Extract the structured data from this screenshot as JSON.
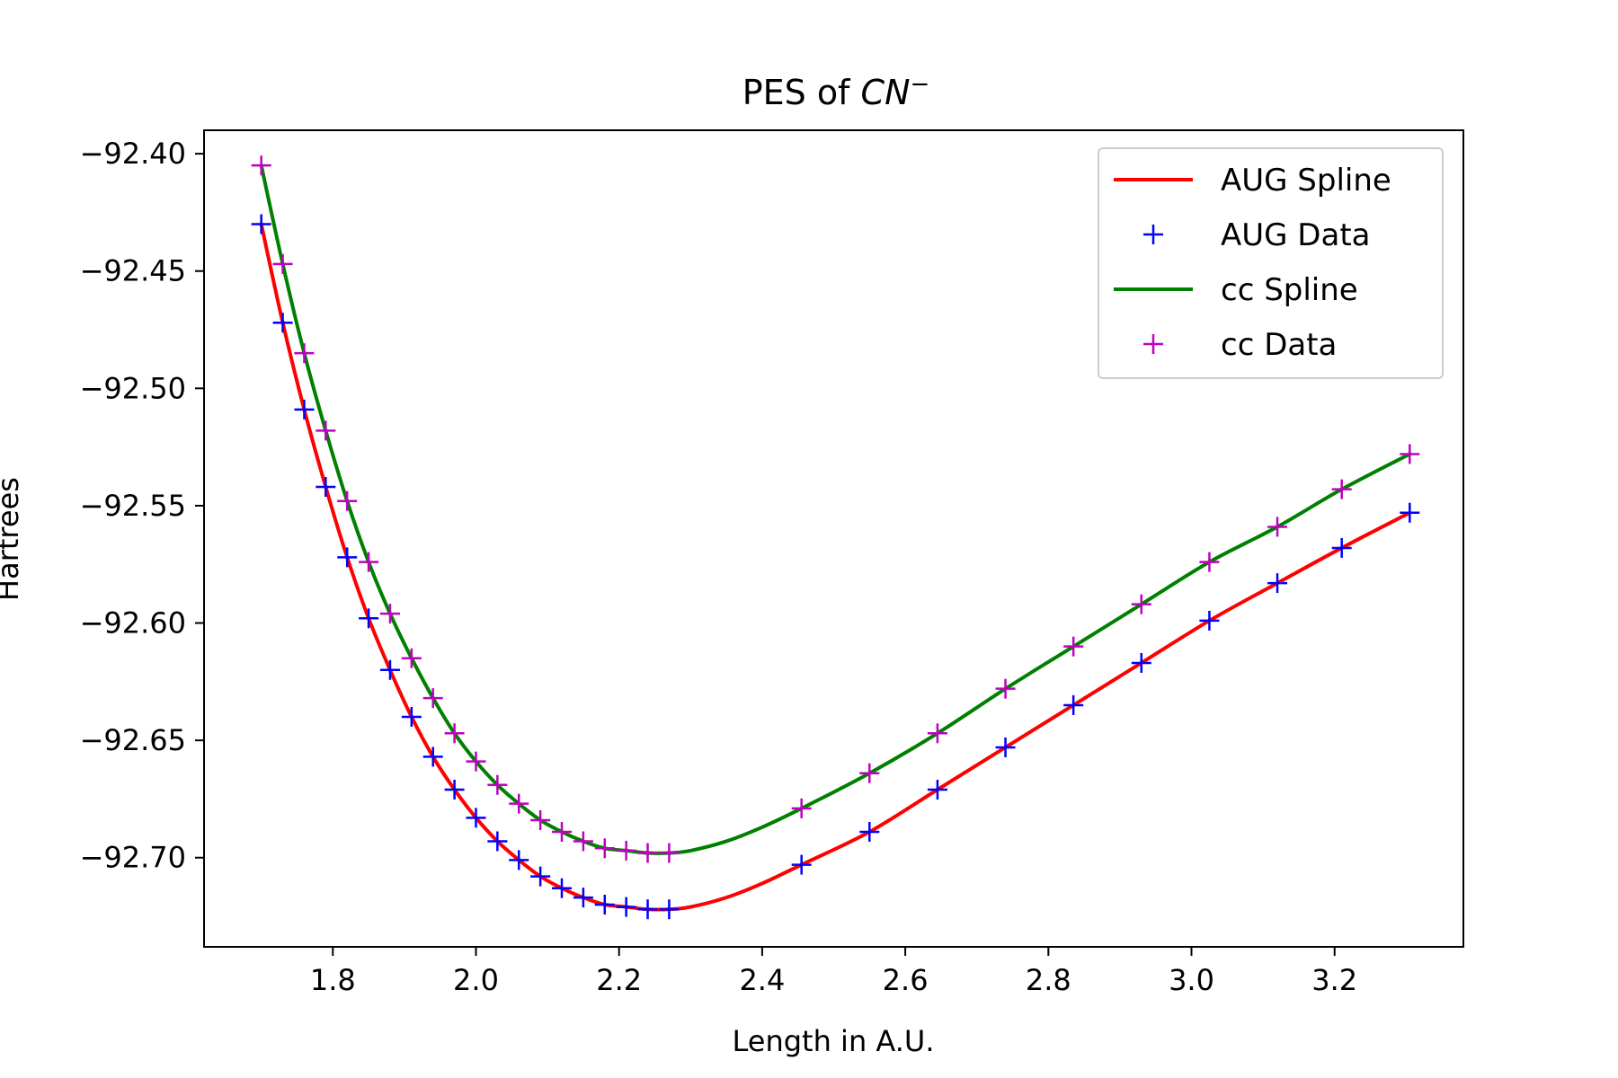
{
  "chart_data": {
    "type": "line",
    "title": "PES of ",
    "title_math": "CN",
    "title_sup": "−",
    "xlabel": "Length in A.U.",
    "ylabel": "Hartrees",
    "xlim": [
      1.62,
      3.38
    ],
    "ylim": [
      -92.738,
      -92.39
    ],
    "xticks": [
      1.8,
      2.0,
      2.2,
      2.4,
      2.6,
      2.8,
      3.0,
      3.2
    ],
    "xtick_labels": [
      "1.8",
      "2.0",
      "2.2",
      "2.4",
      "2.6",
      "2.8",
      "3.0",
      "3.2"
    ],
    "yticks": [
      -92.4,
      -92.45,
      -92.5,
      -92.55,
      -92.6,
      -92.65,
      -92.7
    ],
    "ytick_labels": [
      "−92.40",
      "−92.45",
      "−92.50",
      "−92.55",
      "−92.60",
      "−92.65",
      "−92.70"
    ],
    "grid": false,
    "legend_position": "top-right",
    "legend": [
      {
        "label": "AUG Spline",
        "kind": "line",
        "color": "#ff0000"
      },
      {
        "label": "AUG Data",
        "kind": "marker",
        "color": "#0000ff"
      },
      {
        "label": "cc Spline",
        "kind": "line",
        "color": "#008000"
      },
      {
        "label": "cc Data",
        "kind": "marker",
        "color": "#bf00bf"
      }
    ],
    "series": [
      {
        "name": "AUG Spline",
        "kind": "line",
        "color": "#ff0000",
        "x": [
          1.7,
          1.73,
          1.76,
          1.79,
          1.82,
          1.85,
          1.88,
          1.91,
          1.94,
          1.97,
          2.0,
          2.03,
          2.06,
          2.09,
          2.12,
          2.15,
          2.18,
          2.21,
          2.24,
          2.27,
          2.3,
          2.35,
          2.4,
          2.455,
          2.55,
          2.645,
          2.74,
          2.835,
          2.93,
          3.025,
          3.12,
          3.21,
          3.305
        ],
        "y": [
          -92.43,
          -92.472,
          -92.509,
          -92.542,
          -92.572,
          -92.598,
          -92.62,
          -92.64,
          -92.657,
          -92.671,
          -92.683,
          -92.693,
          -92.701,
          -92.708,
          -92.713,
          -92.717,
          -92.72,
          -92.721,
          -92.722,
          -92.722,
          -92.721,
          -92.717,
          -92.711,
          -92.703,
          -92.689,
          -92.671,
          -92.653,
          -92.635,
          -92.617,
          -92.599,
          -92.583,
          -92.568,
          -92.553
        ]
      },
      {
        "name": "AUG Data",
        "kind": "marker",
        "color": "#0000ff",
        "x": [
          1.7,
          1.73,
          1.76,
          1.79,
          1.82,
          1.85,
          1.88,
          1.91,
          1.94,
          1.97,
          2.0,
          2.03,
          2.06,
          2.09,
          2.12,
          2.15,
          2.18,
          2.21,
          2.24,
          2.27,
          2.455,
          2.55,
          2.645,
          2.74,
          2.835,
          2.93,
          3.025,
          3.12,
          3.21,
          3.305
        ],
        "y": [
          -92.43,
          -92.472,
          -92.509,
          -92.542,
          -92.572,
          -92.598,
          -92.62,
          -92.64,
          -92.657,
          -92.671,
          -92.683,
          -92.693,
          -92.701,
          -92.708,
          -92.713,
          -92.717,
          -92.72,
          -92.721,
          -92.722,
          -92.722,
          -92.703,
          -92.689,
          -92.671,
          -92.653,
          -92.635,
          -92.617,
          -92.599,
          -92.583,
          -92.568,
          -92.553
        ]
      },
      {
        "name": "cc Spline",
        "kind": "line",
        "color": "#008000",
        "x": [
          1.7,
          1.73,
          1.76,
          1.79,
          1.82,
          1.85,
          1.88,
          1.91,
          1.94,
          1.97,
          2.0,
          2.03,
          2.06,
          2.09,
          2.12,
          2.15,
          2.18,
          2.21,
          2.24,
          2.27,
          2.3,
          2.35,
          2.4,
          2.455,
          2.55,
          2.645,
          2.74,
          2.835,
          2.93,
          3.025,
          3.12,
          3.21,
          3.305
        ],
        "y": [
          -92.405,
          -92.447,
          -92.485,
          -92.518,
          -92.548,
          -92.574,
          -92.596,
          -92.615,
          -92.632,
          -92.647,
          -92.659,
          -92.669,
          -92.677,
          -92.684,
          -92.689,
          -92.693,
          -92.696,
          -92.697,
          -92.698,
          -92.698,
          -92.697,
          -92.693,
          -92.687,
          -92.679,
          -92.664,
          -92.647,
          -92.628,
          -92.61,
          -92.592,
          -92.574,
          -92.559,
          -92.543,
          -92.528
        ]
      },
      {
        "name": "cc Data",
        "kind": "marker",
        "color": "#bf00bf",
        "x": [
          1.7,
          1.73,
          1.76,
          1.79,
          1.82,
          1.85,
          1.88,
          1.91,
          1.94,
          1.97,
          2.0,
          2.03,
          2.06,
          2.09,
          2.12,
          2.15,
          2.18,
          2.21,
          2.24,
          2.27,
          2.455,
          2.55,
          2.645,
          2.74,
          2.835,
          2.93,
          3.025,
          3.12,
          3.21,
          3.305
        ],
        "y": [
          -92.405,
          -92.447,
          -92.485,
          -92.518,
          -92.548,
          -92.574,
          -92.596,
          -92.615,
          -92.632,
          -92.647,
          -92.659,
          -92.669,
          -92.677,
          -92.684,
          -92.689,
          -92.693,
          -92.696,
          -92.697,
          -92.698,
          -92.698,
          -92.679,
          -92.664,
          -92.647,
          -92.628,
          -92.61,
          -92.592,
          -92.574,
          -92.559,
          -92.543,
          -92.528
        ]
      }
    ]
  }
}
